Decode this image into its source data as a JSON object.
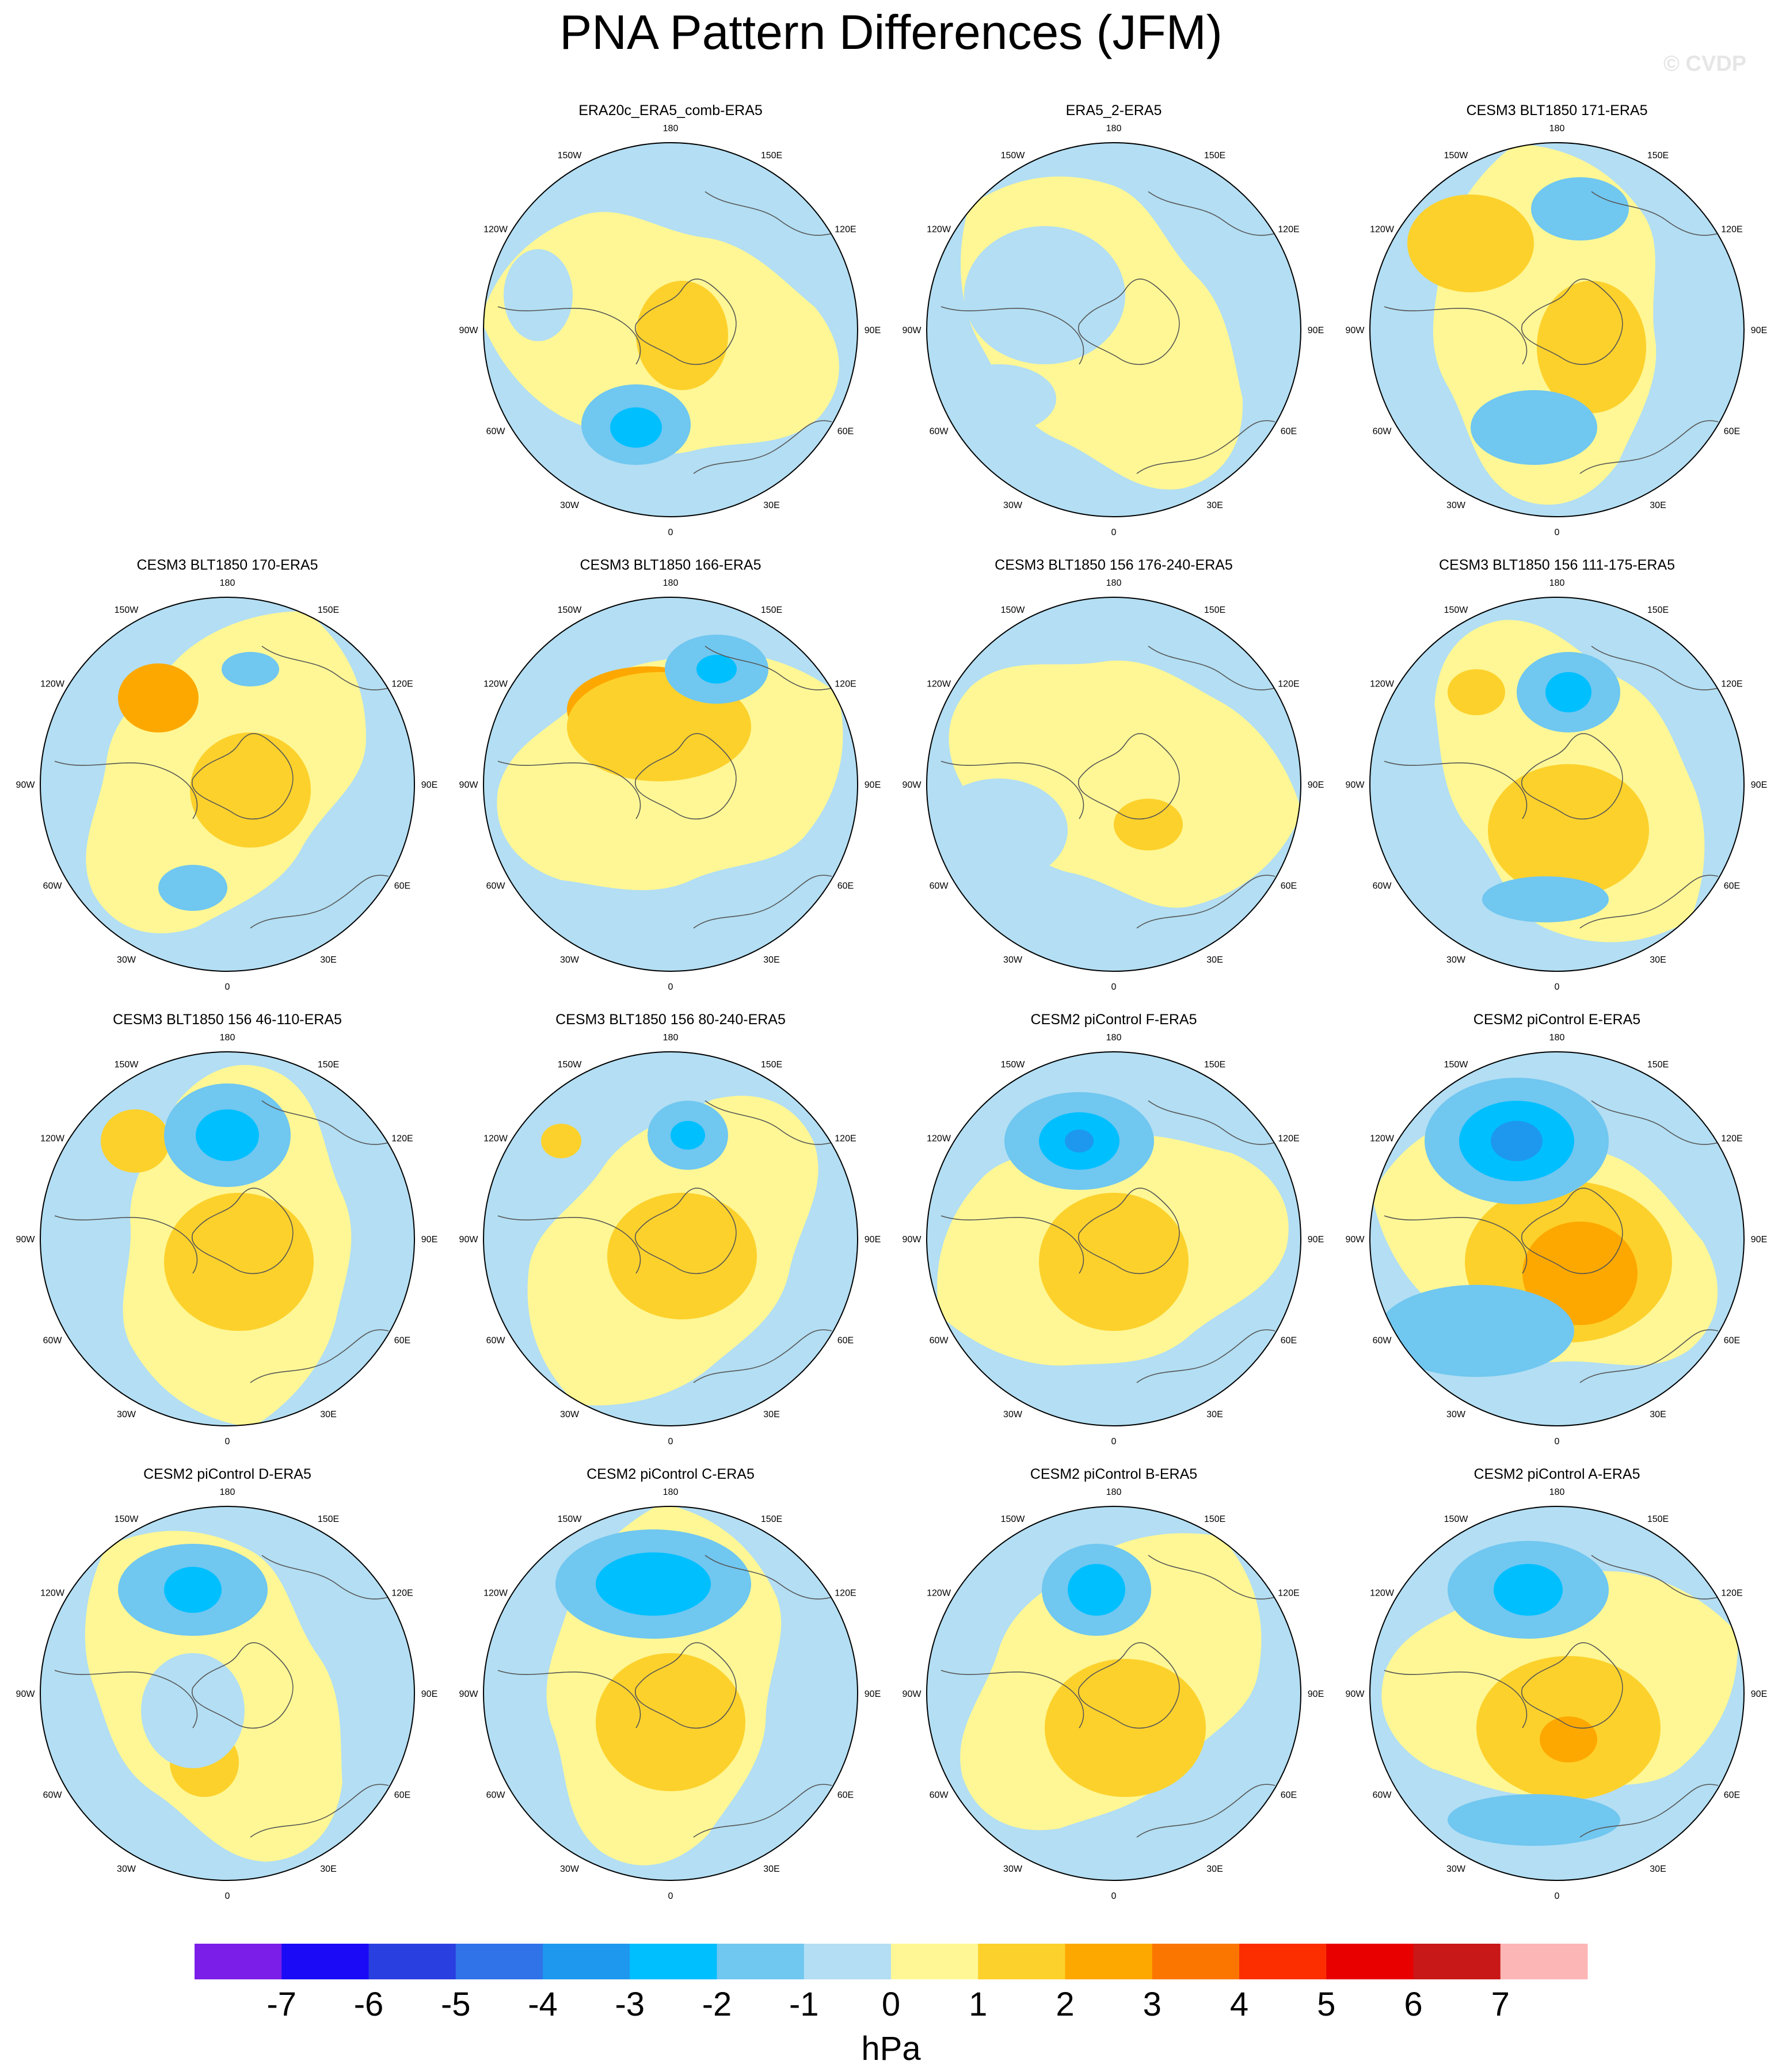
{
  "title": "PNA Pattern Differences (JFM)",
  "watermark": "© CVDP",
  "units": "hPa",
  "colors": {
    "levels": [
      "#7a1ee8",
      "#1a0af5",
      "#2a3fe0",
      "#3072e8",
      "#1d98ee",
      "#00bfff",
      "#70c7f0",
      "#b3def3",
      "#fff795",
      "#fdd12c",
      "#fda800",
      "#fb7600",
      "#fc2e00",
      "#e80000",
      "#c81818",
      "#fdb6b6"
    ],
    "coast": "#555555"
  },
  "colorbar": {
    "tick_labels": [
      "-7",
      "-6",
      "-5",
      "-4",
      "-3",
      "-2",
      "-1",
      "0",
      "1",
      "2",
      "3",
      "4",
      "5",
      "6",
      "7"
    ]
  },
  "longitude_labels": [
    "180",
    "150E",
    "120E",
    "90E",
    "60E",
    "30E",
    "0",
    "30W",
    "60W",
    "90W",
    "120W",
    "150W"
  ],
  "panels": [
    {
      "title": "ERA20c_ERA5_comb-ERA5"
    },
    {
      "title": "ERA5_2-ERA5"
    },
    {
      "title": "CESM3 BLT1850 171-ERA5"
    },
    {
      "title": "CESM3 BLT1850 170-ERA5"
    },
    {
      "title": "CESM3 BLT1850 166-ERA5"
    },
    {
      "title": "CESM3 BLT1850 156 176-240-ERA5"
    },
    {
      "title": "CESM3 BLT1850 156 111-175-ERA5"
    },
    {
      "title": "CESM3 BLT1850 156 46-110-ERA5"
    },
    {
      "title": "CESM3 BLT1850 156 80-240-ERA5"
    },
    {
      "title": "CESM2 piControl F-ERA5"
    },
    {
      "title": "CESM2 piControl E-ERA5"
    },
    {
      "title": "CESM2 piControl D-ERA5"
    },
    {
      "title": "CESM2 piControl C-ERA5"
    },
    {
      "title": "CESM2 piControl B-ERA5"
    },
    {
      "title": "CESM2 piControl A-ERA5"
    }
  ]
}
